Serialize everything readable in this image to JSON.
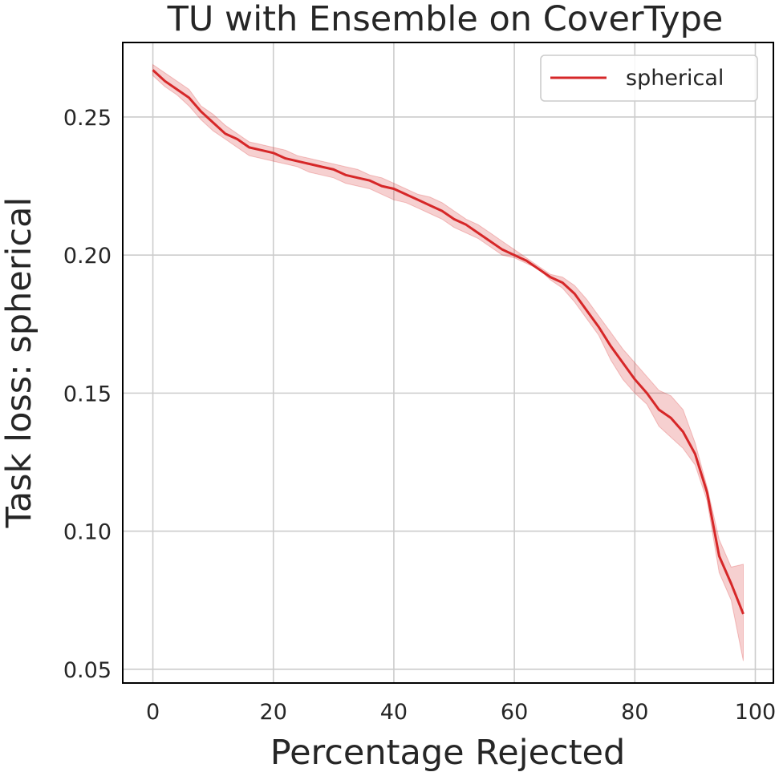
{
  "chart_data": {
    "type": "line",
    "title": "TU with Ensemble on CoverType",
    "xlabel": "Percentage Rejected",
    "ylabel": "Task loss: spherical",
    "xlim": [
      -5,
      103
    ],
    "ylim": [
      0.045,
      0.277
    ],
    "xticks": [
      0,
      20,
      40,
      60,
      80,
      100
    ],
    "yticks": [
      0.05,
      0.1,
      0.15,
      0.2,
      0.25
    ],
    "xtick_labels": [
      "0",
      "20",
      "40",
      "60",
      "80",
      "100"
    ],
    "ytick_labels": [
      "0.05",
      "0.10",
      "0.15",
      "0.20",
      "0.25"
    ],
    "grid": true,
    "legend": {
      "position": "top-right",
      "entries": [
        "spherical"
      ]
    },
    "series": [
      {
        "name": "spherical",
        "color": "#d62728",
        "band_color": "#d62728",
        "x": [
          0,
          2,
          4,
          6,
          8,
          10,
          12,
          14,
          16,
          18,
          20,
          22,
          24,
          26,
          28,
          30,
          32,
          34,
          36,
          38,
          40,
          42,
          44,
          46,
          48,
          50,
          52,
          54,
          56,
          58,
          60,
          62,
          64,
          66,
          68,
          70,
          72,
          74,
          76,
          78,
          80,
          82,
          84,
          86,
          88,
          90,
          92,
          94,
          96,
          98
        ],
        "y": [
          0.267,
          0.263,
          0.26,
          0.257,
          0.252,
          0.248,
          0.244,
          0.242,
          0.239,
          0.238,
          0.237,
          0.235,
          0.234,
          0.233,
          0.232,
          0.231,
          0.229,
          0.228,
          0.227,
          0.225,
          0.224,
          0.222,
          0.22,
          0.218,
          0.216,
          0.213,
          0.211,
          0.208,
          0.205,
          0.202,
          0.2,
          0.198,
          0.195,
          0.192,
          0.19,
          0.186,
          0.18,
          0.174,
          0.167,
          0.161,
          0.155,
          0.15,
          0.144,
          0.141,
          0.136,
          0.128,
          0.114,
          0.091,
          0.081,
          0.07
        ],
        "lower": [
          0.265,
          0.261,
          0.258,
          0.254,
          0.249,
          0.245,
          0.242,
          0.239,
          0.236,
          0.235,
          0.234,
          0.233,
          0.232,
          0.23,
          0.229,
          0.228,
          0.226,
          0.225,
          0.224,
          0.222,
          0.22,
          0.219,
          0.217,
          0.215,
          0.213,
          0.21,
          0.208,
          0.206,
          0.203,
          0.2,
          0.199,
          0.197,
          0.195,
          0.191,
          0.188,
          0.183,
          0.177,
          0.171,
          0.162,
          0.155,
          0.15,
          0.146,
          0.138,
          0.134,
          0.13,
          0.124,
          0.111,
          0.085,
          0.075,
          0.053
        ],
        "upper": [
          0.269,
          0.266,
          0.263,
          0.26,
          0.254,
          0.251,
          0.247,
          0.244,
          0.241,
          0.24,
          0.239,
          0.238,
          0.236,
          0.235,
          0.234,
          0.233,
          0.232,
          0.231,
          0.229,
          0.228,
          0.226,
          0.224,
          0.222,
          0.221,
          0.219,
          0.216,
          0.213,
          0.211,
          0.208,
          0.205,
          0.202,
          0.199,
          0.196,
          0.193,
          0.192,
          0.189,
          0.184,
          0.178,
          0.172,
          0.166,
          0.161,
          0.156,
          0.151,
          0.149,
          0.144,
          0.132,
          0.116,
          0.097,
          0.087,
          0.088
        ]
      }
    ]
  }
}
